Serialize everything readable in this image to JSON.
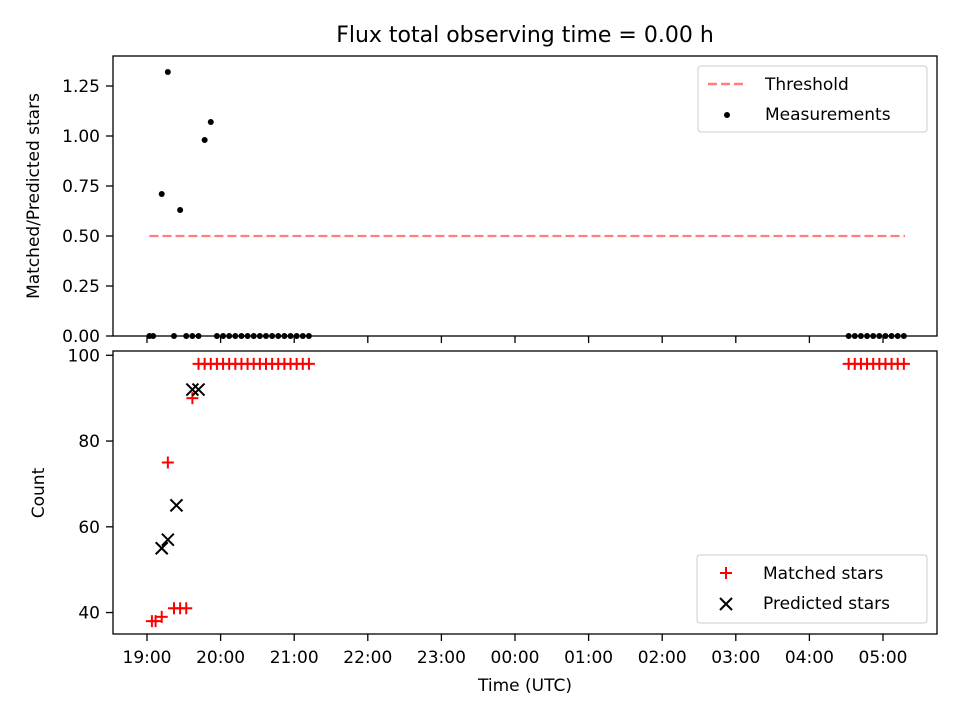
{
  "figure": {
    "title": "Flux total observing time = 0.00 h",
    "xlabel": "Time (UTC)"
  },
  "colors": {
    "threshold": "#ff7f7f",
    "measurements": "#000000",
    "matched": "#ff0000",
    "predicted": "#000000"
  },
  "chart_data": [
    {
      "type": "scatter",
      "ylabel": "Matched/Predicted stars",
      "ylim": [
        0,
        1.4
      ],
      "yticks": [
        0.0,
        0.25,
        0.5,
        0.75,
        1.0,
        1.25
      ],
      "ytick_labels": [
        "0.00",
        "0.25",
        "0.50",
        "0.75",
        "1.00",
        "1.25"
      ],
      "legend_position": "top-right",
      "series": [
        {
          "name": "Threshold",
          "kind": "line",
          "style": "dashed",
          "x": [
            "19:02",
            "05:18"
          ],
          "y": [
            0.5,
            0.5
          ]
        },
        {
          "name": "Measurements",
          "kind": "points",
          "x": [
            "19:02",
            "19:05",
            "19:12",
            "19:17",
            "19:22",
            "19:27",
            "19:32",
            "19:37",
            "19:42",
            "19:47",
            "19:52",
            "19:57",
            "20:02",
            "20:07",
            "20:12",
            "20:17",
            "20:22",
            "20:27",
            "20:32",
            "20:37",
            "20:42",
            "20:47",
            "20:52",
            "20:57",
            "21:02",
            "21:07",
            "21:12",
            "04:32",
            "04:37",
            "04:42",
            "04:47",
            "04:52",
            "04:57",
            "05:02",
            "05:07",
            "05:12",
            "05:17"
          ],
          "y": [
            0,
            0,
            0.71,
            1.32,
            0,
            0.63,
            0,
            0,
            0,
            0.98,
            1.07,
            0,
            0,
            0,
            0,
            0,
            0,
            0,
            0,
            0,
            0,
            0,
            0,
            0,
            0,
            0,
            0,
            0,
            0,
            0,
            0,
            0,
            0,
            0,
            0,
            0,
            0
          ]
        }
      ]
    },
    {
      "type": "scatter",
      "ylabel": "Count",
      "ylim": [
        35,
        101
      ],
      "yticks": [
        40,
        60,
        80,
        100
      ],
      "ytick_labels": [
        "40",
        "60",
        "80",
        "100"
      ],
      "xtick_labels": [
        "19:00",
        "20:00",
        "21:00",
        "22:00",
        "23:00",
        "00:00",
        "01:00",
        "02:00",
        "03:00",
        "04:00",
        "05:00"
      ],
      "legend_position": "bottom-right",
      "series": [
        {
          "name": "Matched stars",
          "marker": "+",
          "x": [
            "19:04",
            "19:07",
            "19:12",
            "19:17",
            "19:22",
            "19:27",
            "19:32",
            "19:37",
            "19:42",
            "19:47",
            "19:52",
            "19:57",
            "20:02",
            "20:07",
            "20:12",
            "20:17",
            "20:22",
            "20:27",
            "20:32",
            "20:37",
            "20:42",
            "20:47",
            "20:52",
            "20:57",
            "21:02",
            "21:07",
            "21:12",
            "04:32",
            "04:37",
            "04:42",
            "04:47",
            "04:52",
            "04:57",
            "05:02",
            "05:07",
            "05:12",
            "05:17"
          ],
          "y": [
            38,
            38,
            39,
            75,
            41,
            41,
            41,
            90,
            98,
            98,
            98,
            98,
            98,
            98,
            98,
            98,
            98,
            98,
            98,
            98,
            98,
            98,
            98,
            98,
            98,
            98,
            98,
            98,
            98,
            98,
            98,
            98,
            98,
            98,
            98,
            98,
            98
          ]
        },
        {
          "name": "Predicted stars",
          "marker": "x",
          "x": [
            "19:12",
            "19:17",
            "19:24",
            "19:37",
            "19:42"
          ],
          "y": [
            55,
            57,
            65,
            92,
            92
          ]
        }
      ]
    }
  ]
}
